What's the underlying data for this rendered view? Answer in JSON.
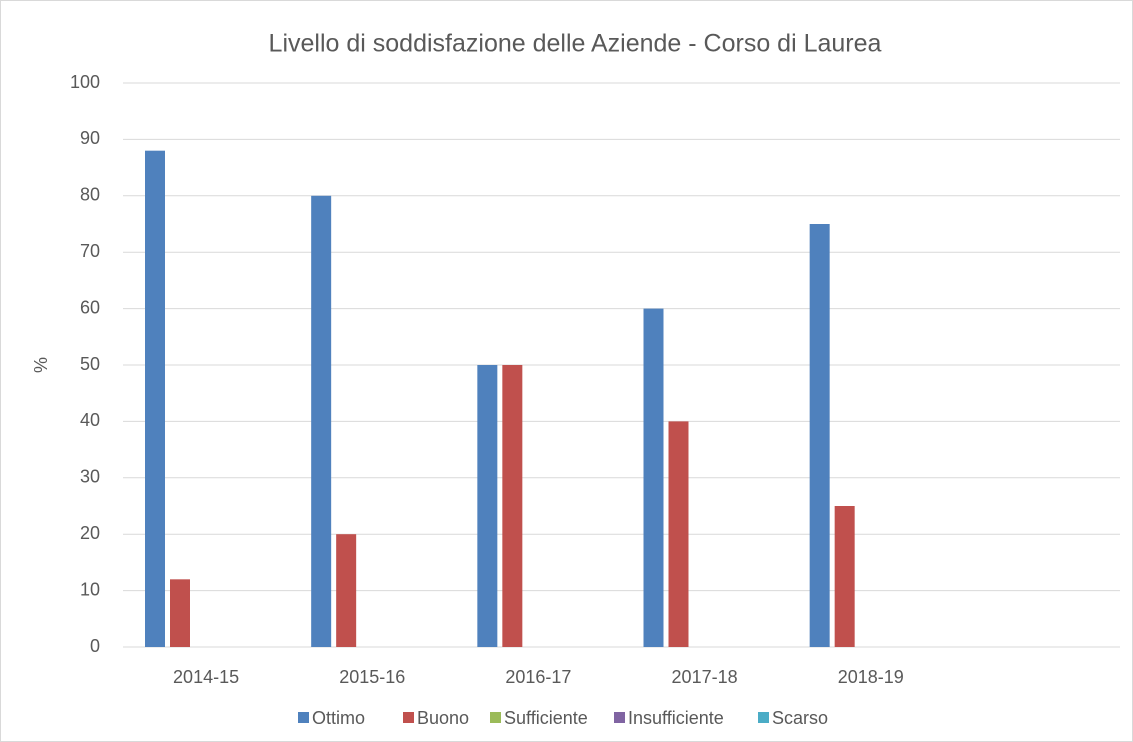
{
  "chart_data": {
    "type": "bar",
    "title": "Livello di soddisfazione delle Aziende - Corso di Laurea",
    "y_label": "%",
    "categories": [
      "2014-15",
      "2015-16",
      "2016-17",
      "2017-18",
      "2018-19",
      null
    ],
    "series": [
      {
        "name": "Ottimo",
        "color": "#4f81bd",
        "values": [
          88,
          80,
          50,
          60,
          75,
          null
        ]
      },
      {
        "name": "Buono",
        "color": "#c0504d",
        "values": [
          12,
          20,
          50,
          40,
          25,
          null
        ]
      },
      {
        "name": "Sufficiente",
        "color": "#9bbb59",
        "values": [
          0,
          0,
          0,
          0,
          0,
          null
        ]
      },
      {
        "name": "Insufficiente",
        "color": "#8064a2",
        "values": [
          0,
          0,
          0,
          0,
          0,
          null
        ]
      },
      {
        "name": "Scarso",
        "color": "#4bacc6",
        "values": [
          0,
          0,
          0,
          0,
          0,
          null
        ]
      }
    ],
    "ylim": [
      0,
      100
    ],
    "yticks": [
      0,
      10,
      20,
      30,
      40,
      50,
      60,
      70,
      80,
      90,
      100
    ],
    "grid": true,
    "legend": "bottom"
  }
}
